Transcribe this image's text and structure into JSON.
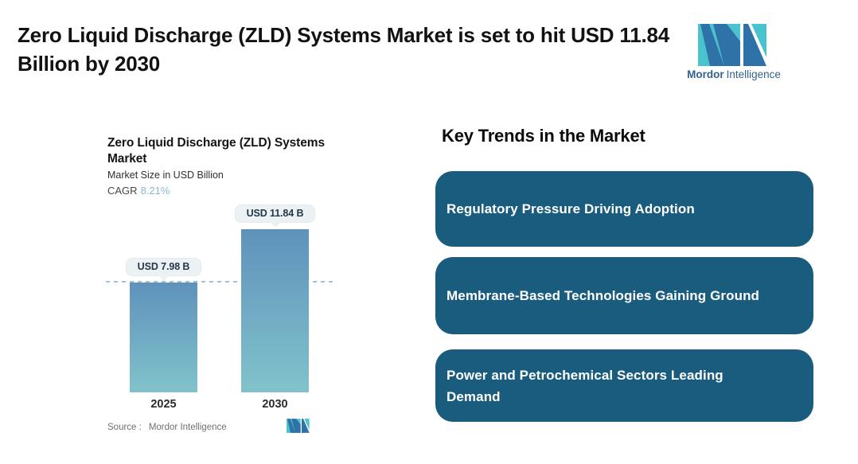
{
  "page": {
    "title": "Zero Liquid Discharge (ZLD) Systems Market is set to hit USD 11.84 Billion by 2030"
  },
  "brand": {
    "name_bold": "Mordor",
    "name_light": "Intelligence",
    "colors": {
      "teal": "#49C3CE",
      "blue": "#2E72A8",
      "text": "#33618C"
    }
  },
  "chart": {
    "title": "Zero Liquid Discharge (ZLD) Systems Market",
    "subtitle": "Market Size in USD Billion",
    "cagr_label": "CAGR",
    "cagr_value": "8.21%",
    "source_label": "Source :",
    "source_value": "Mordor Intelligence"
  },
  "chart_data": {
    "type": "bar",
    "title": "Zero Liquid Discharge (ZLD) Systems Market",
    "ylabel": "Market Size in USD Billion",
    "categories": [
      "2025",
      "2030"
    ],
    "values": [
      7.98,
      11.84
    ],
    "value_labels": [
      "USD 7.98 B",
      "USD 11.84 B"
    ],
    "cagr": "8.21%",
    "reference_line": 7.98,
    "bar_gradient": [
      "#5E92BB",
      "#81C3CB"
    ],
    "reference_line_color": "#A3BFD9",
    "grid": false,
    "legend": false
  },
  "trends": {
    "heading": "Key Trends in the Market",
    "card_color": "#1A5C7D",
    "items": [
      "Regulatory Pressure Driving Adoption",
      "Membrane-Based Technologies Gaining Ground",
      "Power and Petrochemical Sectors Leading Demand"
    ]
  }
}
